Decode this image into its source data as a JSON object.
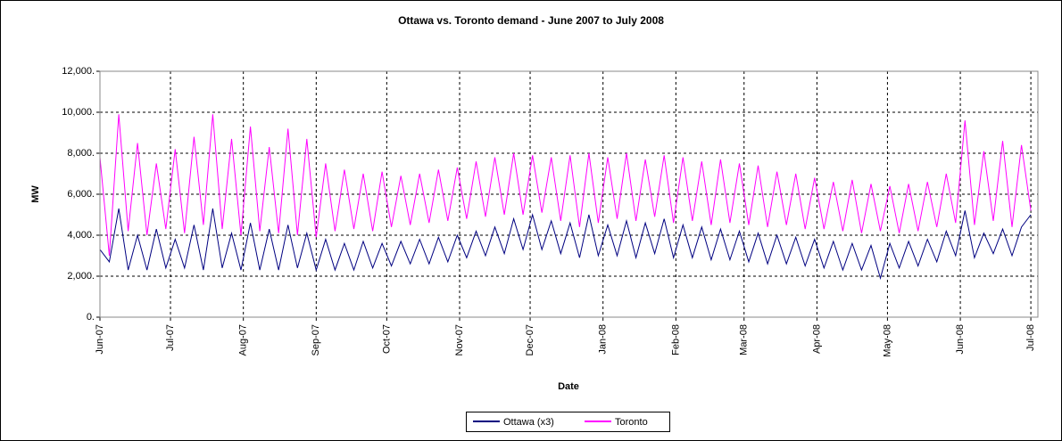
{
  "chart_data": {
    "type": "line",
    "title": "Ottawa vs. Toronto demand - June 2007 to July 2008",
    "x_label": "Date",
    "y_label": "MW",
    "x": [
      39234,
      39238,
      39242,
      39246,
      39250,
      39254,
      39258,
      39262,
      39266,
      39270,
      39274,
      39278,
      39282,
      39286,
      39290,
      39294,
      39298,
      39302,
      39306,
      39310,
      39314,
      39318,
      39322,
      39326,
      39330,
      39334,
      39338,
      39342,
      39346,
      39350,
      39354,
      39358,
      39362,
      39366,
      39370,
      39374,
      39378,
      39382,
      39386,
      39390,
      39394,
      39398,
      39402,
      39406,
      39410,
      39414,
      39418,
      39422,
      39426,
      39430,
      39434,
      39438,
      39442,
      39446,
      39450,
      39454,
      39458,
      39462,
      39466,
      39470,
      39474,
      39478,
      39482,
      39486,
      39490,
      39494,
      39498,
      39502,
      39506,
      39510,
      39514,
      39518,
      39522,
      39526,
      39530,
      39534,
      39538,
      39542,
      39546,
      39550,
      39554,
      39558,
      39562,
      39566,
      39570,
      39574,
      39578,
      39582,
      39586,
      39590,
      39594,
      39598,
      39602,
      39606,
      39610,
      39614,
      39618,
      39622,
      39626,
      39630
    ],
    "series": [
      {
        "name": "Ottawa (x3)",
        "color": "#000080",
        "values": [
          3300,
          2700,
          5300,
          2300,
          4000,
          2300,
          4300,
          2400,
          3800,
          2400,
          4500,
          2300,
          5300,
          2400,
          4100,
          2300,
          4600,
          2300,
          4300,
          2300,
          4500,
          2400,
          4100,
          2300,
          3800,
          2300,
          3600,
          2300,
          3700,
          2400,
          3600,
          2500,
          3700,
          2600,
          3800,
          2600,
          3900,
          2700,
          4000,
          2900,
          4200,
          3000,
          4400,
          3100,
          4800,
          3300,
          5000,
          3300,
          4700,
          3100,
          4600,
          2900,
          5000,
          3000,
          4500,
          3000,
          4700,
          2900,
          4600,
          3100,
          4800,
          2900,
          4500,
          2900,
          4400,
          2800,
          4300,
          2800,
          4200,
          2700,
          4100,
          2600,
          4000,
          2600,
          3900,
          2500,
          3800,
          2400,
          3700,
          2300,
          3600,
          2300,
          3500,
          1900,
          3600,
          2400,
          3700,
          2500,
          3800,
          2700,
          4200,
          3000,
          5200,
          2900,
          4100,
          3100,
          4300,
          3000,
          4400,
          5000
        ]
      },
      {
        "name": "Toronto",
        "color": "#ff00ff",
        "values": [
          7800,
          3000,
          9900,
          4200,
          8500,
          4000,
          7500,
          4300,
          8200,
          4100,
          8800,
          4500,
          9900,
          4300,
          8700,
          4000,
          9300,
          4200,
          8300,
          4100,
          9200,
          4000,
          8700,
          3900,
          7500,
          4200,
          7200,
          4300,
          7000,
          4200,
          7100,
          4400,
          6900,
          4500,
          7000,
          4600,
          7200,
          4700,
          7300,
          4800,
          7600,
          4900,
          7800,
          5000,
          8000,
          5000,
          7900,
          5100,
          7800,
          4700,
          7900,
          4400,
          8000,
          4600,
          7800,
          4800,
          8000,
          4700,
          7700,
          4900,
          7900,
          4600,
          7800,
          4700,
          7600,
          4500,
          7700,
          4600,
          7500,
          4500,
          7400,
          4400,
          7100,
          4500,
          7000,
          4300,
          6800,
          4300,
          6600,
          4200,
          6700,
          4100,
          6500,
          4200,
          6400,
          4100,
          6500,
          4200,
          6600,
          4400,
          7000,
          4600,
          9600,
          4500,
          8100,
          4700,
          8600,
          4400,
          8400,
          5200
        ]
      }
    ],
    "xlim": [
      39234,
      39633
    ],
    "xticks": [
      {
        "value": 39234,
        "label": "Jun-07"
      },
      {
        "value": 39264,
        "label": "Jul-07"
      },
      {
        "value": 39295,
        "label": "Aug-07"
      },
      {
        "value": 39326,
        "label": "Sep-07"
      },
      {
        "value": 39356,
        "label": "Oct-07"
      },
      {
        "value": 39387,
        "label": "Nov-07"
      },
      {
        "value": 39417,
        "label": "Dec-07"
      },
      {
        "value": 39448,
        "label": "Jan-08"
      },
      {
        "value": 39479,
        "label": "Feb-08"
      },
      {
        "value": 39508,
        "label": "Mar-08"
      },
      {
        "value": 39539,
        "label": "Apr-08"
      },
      {
        "value": 39569,
        "label": "May-08"
      },
      {
        "value": 39600,
        "label": "Jun-08"
      },
      {
        "value": 39630,
        "label": "Jul-08"
      }
    ],
    "ylim": [
      0,
      12000
    ],
    "yticks": [
      {
        "value": 0,
        "label": "0."
      },
      {
        "value": 2000,
        "label": "2,000."
      },
      {
        "value": 4000,
        "label": "4,000."
      },
      {
        "value": 6000,
        "label": "6,000."
      },
      {
        "value": 8000,
        "label": "8,000."
      },
      {
        "value": 10000,
        "label": "10,000."
      },
      {
        "value": 12000,
        "label": "12,000."
      }
    ],
    "grid": true,
    "legend": "bottom"
  }
}
